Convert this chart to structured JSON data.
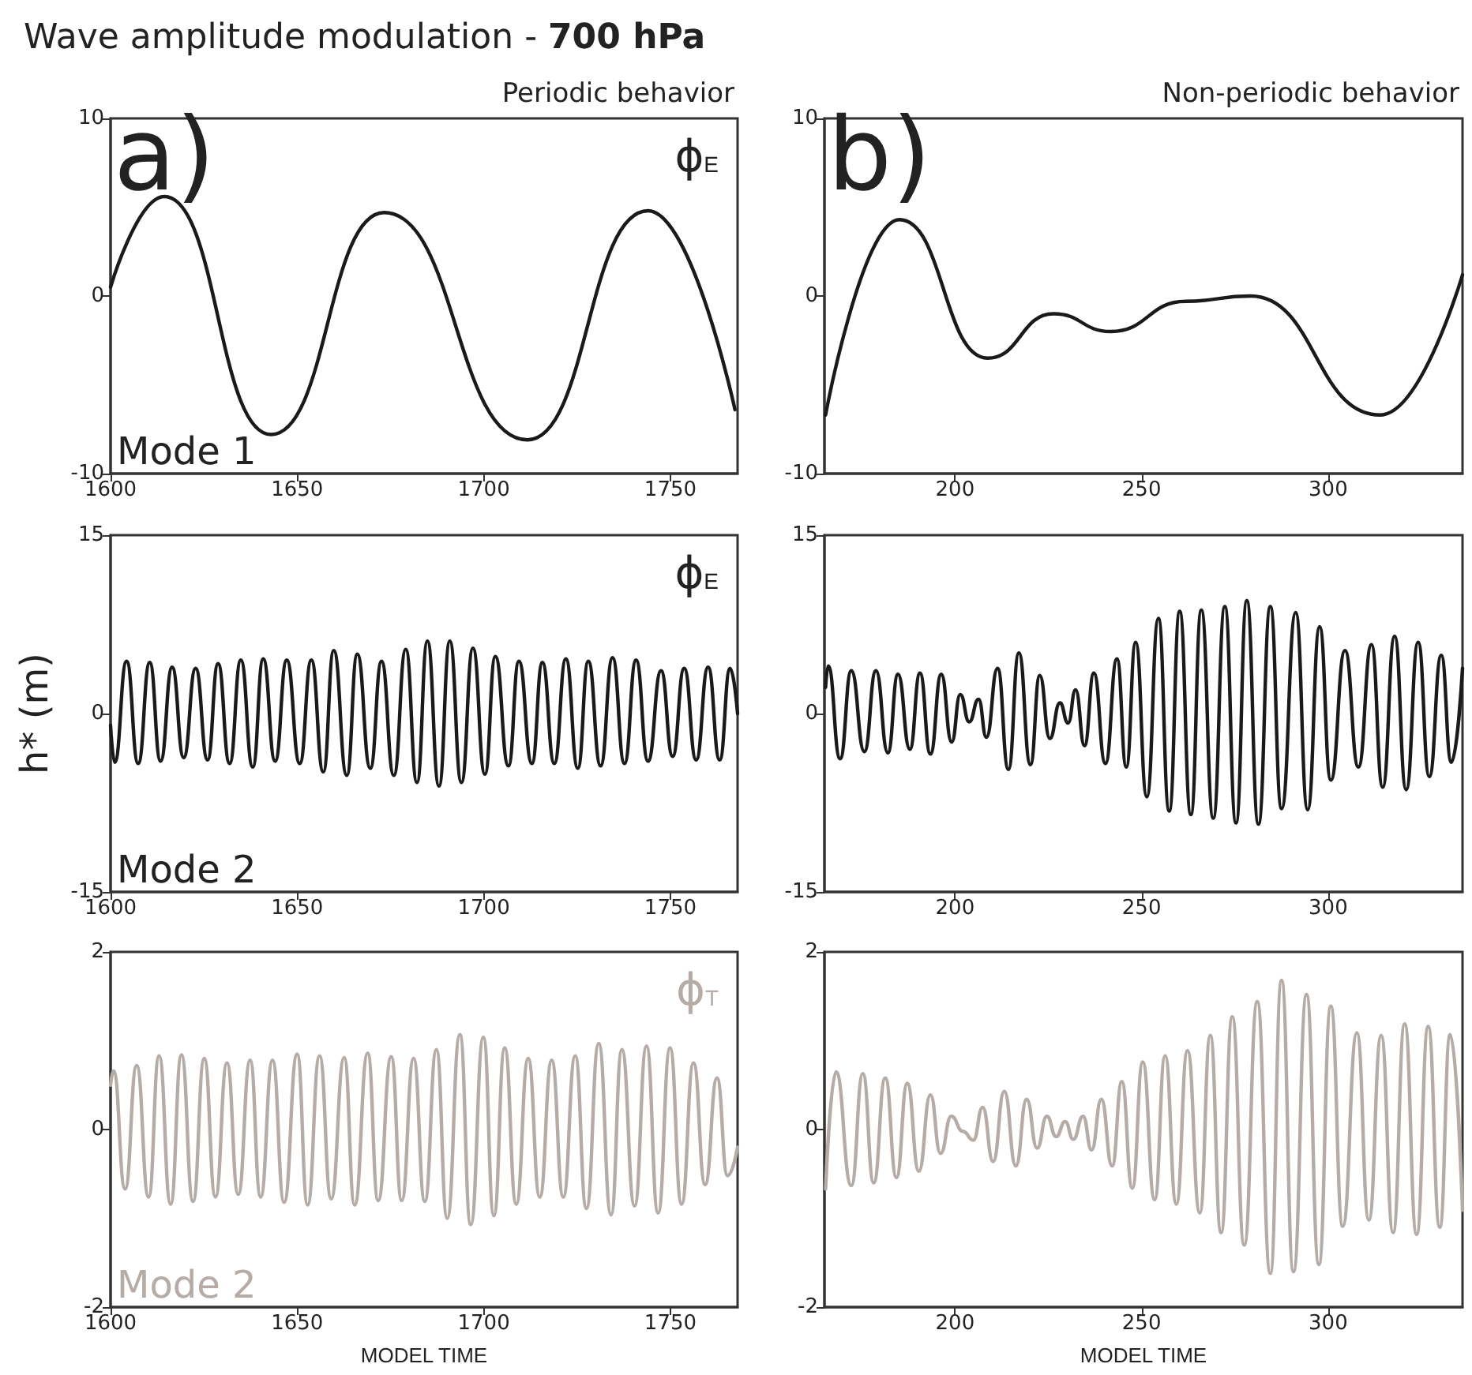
{
  "chart_data": [
    {
      "type": "line",
      "title": "Wave amplitude modulation - 700 hPa",
      "subtitle": "Periodic behavior",
      "annotations": [
        "a)",
        "ϕ$_{E}$",
        "Mode 1"
      ],
      "xlim": [
        1600,
        1768
      ],
      "xticks": [
        1600,
        1650,
        1700,
        1750
      ],
      "ylim": [
        -10,
        10
      ],
      "yticks": [
        -10,
        0,
        10
      ],
      "grid": false,
      "x": [
        1600,
        1614.4,
        1643,
        1673.3,
        1711.7,
        1744,
        1767.3
      ],
      "series": [
        {
          "color": "#1a1a1a",
          "values": [
            0.5,
            5.6,
            -7.8,
            4.7,
            -8.1,
            4.8,
            -6.4
          ]
        }
      ]
    },
    {
      "type": "line",
      "subtitle": "Non-periodic behavior",
      "annotations": [
        "b)"
      ],
      "xlim": [
        165,
        336
      ],
      "xticks": [
        200,
        250,
        300
      ],
      "ylim": [
        -10,
        10
      ],
      "yticks": [
        -10,
        0,
        10
      ],
      "grid": false,
      "x": [
        165.3,
        185.1,
        208.7,
        226.4,
        241.7,
        261.8,
        279.2,
        313.9,
        336
      ],
      "series": [
        {
          "color": "#1a1a1a",
          "values": [
            -6.7,
            4.3,
            -3.5,
            -1.0,
            -2.0,
            -0.3,
            0,
            -6.7,
            1.2
          ]
        }
      ]
    },
    {
      "type": "line",
      "ylabel": "h* (m)",
      "annotations": [
        "ϕ$_{E}$",
        "Mode 2"
      ],
      "xlim": [
        1600,
        1768
      ],
      "xticks": [
        1600,
        1650,
        1700,
        1750
      ],
      "ylim": [
        -15,
        15
      ],
      "yticks": [
        -15,
        0,
        15
      ],
      "grid": false,
      "x": [
        1600,
        1601.1,
        1604.3,
        1607.4,
        1610.5,
        1613.4,
        1616.5,
        1619.6,
        1622.8,
        1626,
        1628.8,
        1631.9,
        1634.9,
        1638.1,
        1640.9,
        1644.1,
        1647.2,
        1650.7,
        1653.8,
        1657,
        1659.8,
        1663.3,
        1666.1,
        1669.6,
        1672.6,
        1675.9,
        1679.1,
        1682.1,
        1684.9,
        1688,
        1690.9,
        1694,
        1697.1,
        1700.3,
        1703.1,
        1706.6,
        1709.4,
        1712.9,
        1715.7,
        1718.9,
        1722,
        1725.2,
        1728,
        1731.3,
        1734.5,
        1737.7,
        1740.8,
        1744,
        1747.5,
        1750.6,
        1753.7,
        1756.9,
        1760.1,
        1763.2,
        1766,
        1768
      ],
      "series": [
        {
          "color": "#1a1a1a",
          "values": [
            -1,
            -4.1,
            4.4,
            -4.2,
            4.3,
            -4.0,
            3.9,
            -3.7,
            3.8,
            -3.9,
            4.2,
            -4.2,
            4.5,
            -4.5,
            4.6,
            -4.0,
            4.5,
            -4.2,
            4.5,
            -4.9,
            5.3,
            -5.2,
            5.0,
            -4.6,
            4.4,
            -5.2,
            5.4,
            -5.8,
            6.1,
            -6.1,
            6.1,
            -5.8,
            5.5,
            -5.1,
            4.8,
            -4.4,
            4.4,
            -4.2,
            4.3,
            -4.2,
            4.6,
            -4.6,
            4.4,
            -4.4,
            4.7,
            -4.2,
            4.5,
            -4.0,
            3.6,
            -3.6,
            3.8,
            -3.9,
            3.9,
            -3.9,
            3.8,
            0
          ]
        }
      ]
    },
    {
      "type": "line",
      "xlim": [
        165,
        336
      ],
      "xticks": [
        200,
        250,
        300
      ],
      "ylim": [
        -15,
        15
      ],
      "yticks": [
        -15,
        0,
        15
      ],
      "grid": false,
      "x": [
        165.3,
        166,
        169.2,
        172.2,
        175.7,
        178.8,
        182,
        184.7,
        187.9,
        190.6,
        193.4,
        196.3,
        199.1,
        201.4,
        203.8,
        206.3,
        208.4,
        211.4,
        214.3,
        217.1,
        220.2,
        222.7,
        225.4,
        228.1,
        230.3,
        232.3,
        234.7,
        237.2,
        240.3,
        243.4,
        245.9,
        248.4,
        251.4,
        254.5,
        257.4,
        260.2,
        263.2,
        266,
        269.2,
        272.3,
        275.3,
        278.2,
        281.3,
        284.5,
        287.5,
        291.3,
        294.5,
        297.7,
        300.7,
        304.5,
        308.1,
        311.6,
        314.6,
        317.8,
        320.9,
        324.1,
        327.1,
        330.3,
        333,
        336
      ],
      "series": [
        {
          "color": "#1a1a1a",
          "values": [
            2.2,
            4.0,
            -3.8,
            3.6,
            -3.2,
            3.6,
            -3.3,
            3.3,
            -3.0,
            3.4,
            -3.4,
            3.3,
            -2.4,
            1.6,
            -0.7,
            1.2,
            -2.0,
            3.8,
            -4.7,
            5.1,
            -4.3,
            3.2,
            -2.1,
            0.9,
            -0.8,
            2.0,
            -2.7,
            3.4,
            -4.2,
            4.6,
            -4.5,
            6.0,
            -7.0,
            8.0,
            -8.2,
            8.6,
            -8.5,
            8.7,
            -8.8,
            9.0,
            -9.2,
            9.5,
            -9.3,
            9.0,
            -8.0,
            8.5,
            -8.1,
            7.3,
            -5.6,
            5.3,
            -4.5,
            5.8,
            -6.2,
            6.5,
            -6.4,
            6.0,
            -5.3,
            4.9,
            -4.1,
            3.8
          ]
        }
      ]
    },
    {
      "type": "line",
      "xlabel": "MODEL TIME",
      "annotations": [
        "ϕ$_{T}$",
        "Mode 2"
      ],
      "xlim": [
        1600,
        1768
      ],
      "xticks": [
        1600,
        1650,
        1700,
        1750
      ],
      "ylim": [
        -2,
        2
      ],
      "yticks": [
        -2,
        0,
        2
      ],
      "grid": false,
      "x": [
        1600,
        1600.8,
        1603.9,
        1607,
        1610.2,
        1613,
        1616.1,
        1619,
        1622.1,
        1625.1,
        1628.1,
        1631.2,
        1634.2,
        1637.4,
        1640.2,
        1643.4,
        1646.5,
        1650,
        1652.8,
        1656,
        1659.1,
        1662.6,
        1665.4,
        1668.9,
        1671.7,
        1675.2,
        1678,
        1681.2,
        1684.2,
        1687.3,
        1690.2,
        1693.6,
        1696.5,
        1699.9,
        1702.7,
        1705.6,
        1708.7,
        1711.9,
        1715,
        1718.2,
        1721.3,
        1724.5,
        1727.5,
        1730.8,
        1734.1,
        1737,
        1740.4,
        1743.6,
        1746.7,
        1749.9,
        1753,
        1756.2,
        1759.3,
        1762.5,
        1765.3,
        1768
      ],
      "series": [
        {
          "color": "#b5aca8",
          "values": [
            0.5,
            0.66,
            -0.67,
            0.72,
            -0.76,
            0.83,
            -0.84,
            0.84,
            -0.81,
            0.8,
            -0.76,
            0.75,
            -0.73,
            0.78,
            -0.76,
            0.78,
            -0.82,
            0.85,
            -0.85,
            0.83,
            -0.78,
            0.81,
            -0.85,
            0.86,
            -0.8,
            0.82,
            -0.8,
            0.8,
            -0.81,
            0.9,
            -1.0,
            1.07,
            -1.07,
            1.04,
            -0.97,
            0.92,
            -0.84,
            0.8,
            -0.76,
            0.78,
            -0.76,
            0.83,
            -0.89,
            0.97,
            -0.96,
            0.9,
            -0.86,
            0.94,
            -0.94,
            0.92,
            -0.84,
            0.75,
            -0.62,
            0.58,
            -0.52,
            -0.2
          ]
        }
      ]
    },
    {
      "type": "line",
      "xlabel": "MODEL TIME",
      "xlim": [
        165,
        336
      ],
      "xticks": [
        200,
        250,
        300
      ],
      "ylim": [
        -2,
        2
      ],
      "yticks": [
        -2,
        0,
        2
      ],
      "grid": false,
      "x": [
        165.3,
        168.1,
        172.2,
        175.3,
        178.2,
        181.3,
        184.3,
        187.2,
        190.3,
        193.4,
        196.1,
        199,
        202.1,
        204.9,
        207.4,
        210.2,
        213.2,
        216.3,
        219.2,
        222,
        224.6,
        227.1,
        229.5,
        231.7,
        234.3,
        236.6,
        239.2,
        242.1,
        244.7,
        247.5,
        250.3,
        253.5,
        256.3,
        259.3,
        262.3,
        265.6,
        268.4,
        271.3,
        274.3,
        277.5,
        281,
        284.5,
        287.5,
        290.7,
        294.2,
        297.5,
        300.7,
        303.9,
        307.7,
        310.9,
        314.2,
        317.4,
        320.5,
        323.7,
        326.8,
        329.9,
        332.7,
        336
      ],
      "series": [
        {
          "color": "#b5aca8",
          "values": [
            -0.67,
            0.65,
            -0.63,
            0.63,
            -0.6,
            0.58,
            -0.54,
            0.52,
            -0.47,
            0.39,
            -0.27,
            0.15,
            -0.02,
            -0.12,
            0.25,
            -0.36,
            0.43,
            -0.41,
            0.34,
            -0.21,
            0.15,
            -0.08,
            0.09,
            -0.11,
            0.15,
            -0.23,
            0.34,
            -0.41,
            0.54,
            -0.66,
            0.76,
            -0.79,
            0.83,
            -0.84,
            0.89,
            -0.94,
            1.06,
            -1.16,
            1.27,
            -1.3,
            1.44,
            -1.62,
            1.68,
            -1.6,
            1.52,
            -1.52,
            1.39,
            -1.09,
            1.09,
            -1.02,
            1.06,
            -1.16,
            1.19,
            -1.18,
            1.16,
            -1.1,
            1.07,
            -0.91
          ]
        }
      ]
    }
  ]
}
